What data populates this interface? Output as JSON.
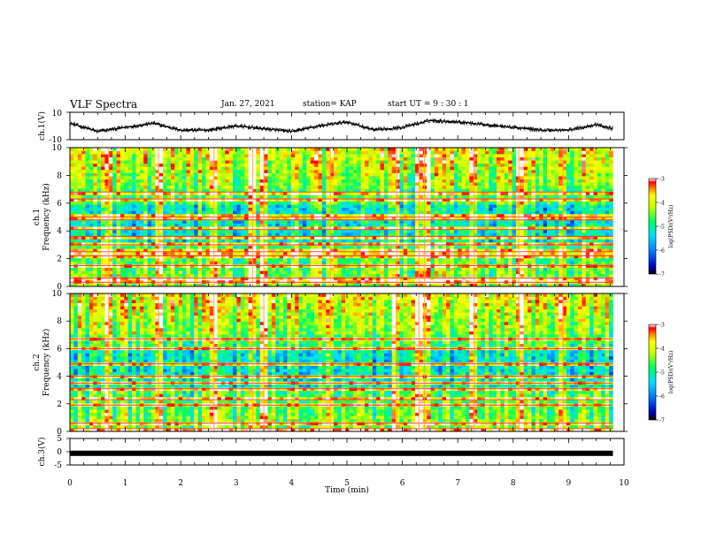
{
  "header": {
    "title": "VLF Spectra",
    "date": "Jan. 27, 2021",
    "station": "station= KAP",
    "start_ut": "start  UT  =   9  : 30 : 1"
  },
  "chart_data": [
    {
      "type": "line",
      "panel": "ch1-waveform",
      "ylabel": "ch.1(V)",
      "ylim": [
        -10,
        10
      ],
      "yticks": [
        "10",
        "-10"
      ],
      "x": [
        0.0,
        0.5,
        1.0,
        1.5,
        2.0,
        2.5,
        3.0,
        3.5,
        4.0,
        4.5,
        5.0,
        5.5,
        6.0,
        6.5,
        7.0,
        7.5,
        8.0,
        8.5,
        9.0,
        9.5,
        9.8
      ],
      "y": [
        2,
        -4,
        -1,
        2,
        -3,
        -3,
        0,
        -2,
        -4,
        0,
        3,
        -3,
        -1,
        4,
        3,
        1,
        -1,
        -3,
        -3,
        1,
        -2
      ],
      "color": "#000000"
    },
    {
      "type": "heatmap",
      "panel": "ch1-spectrogram",
      "ylabel": "Frequency (kHz)",
      "channel_label": "ch.1",
      "ylim": [
        0,
        10
      ],
      "yticks": [
        "0",
        "2",
        "4",
        "6",
        "8",
        "10"
      ],
      "colorbar": {
        "label": "log(PSD)(V²/Hz)",
        "range": [
          -7,
          -3
        ],
        "ticks": [
          "-3",
          "-4",
          "-5",
          "-6",
          "-7"
        ]
      },
      "bands_khz": [
        0.3,
        0.6,
        1.5,
        2.2,
        2.5,
        3.0,
        3.6,
        4.1,
        4.8,
        5.0,
        6.3,
        6.8
      ],
      "impulse_times_min": [
        0.7,
        1.6,
        2.6,
        3.3,
        3.5,
        4.7,
        5.9,
        6.3,
        6.4,
        7.3,
        8.1,
        8.9
      ]
    },
    {
      "type": "heatmap",
      "panel": "ch2-spectrogram",
      "ylabel": "Frequency (kHz)",
      "channel_label": "ch.2",
      "ylim": [
        0,
        10
      ],
      "yticks": [
        "0",
        "2",
        "4",
        "6",
        "8",
        "10"
      ],
      "colorbar": {
        "label": "log(PSD)(V²/Hz)",
        "range": [
          -7,
          -3
        ],
        "ticks": [
          "-3",
          "-4",
          "-5",
          "-6",
          "-7"
        ]
      },
      "bands_khz": [
        0.2,
        0.6,
        1.9,
        2.3,
        3.1,
        3.5,
        4.0,
        4.9,
        6.0,
        6.7
      ],
      "impulse_times_min": [
        0.7,
        1.6,
        2.6,
        3.3,
        3.5,
        4.7,
        5.9,
        6.3,
        6.4,
        7.3,
        8.1,
        8.9
      ]
    },
    {
      "type": "line",
      "panel": "ch3-waveform",
      "ylabel": "ch.3(V)",
      "ylim": [
        -5,
        5
      ],
      "yticks": [
        "5",
        "0",
        "-5"
      ],
      "level_v": -0.6,
      "color": "#000000"
    }
  ],
  "axis": {
    "xlabel": "Time (min)",
    "xlim": [
      0,
      10
    ],
    "xticks": [
      "0",
      "1",
      "2",
      "3",
      "4",
      "5",
      "6",
      "7",
      "8",
      "9",
      "10"
    ]
  }
}
